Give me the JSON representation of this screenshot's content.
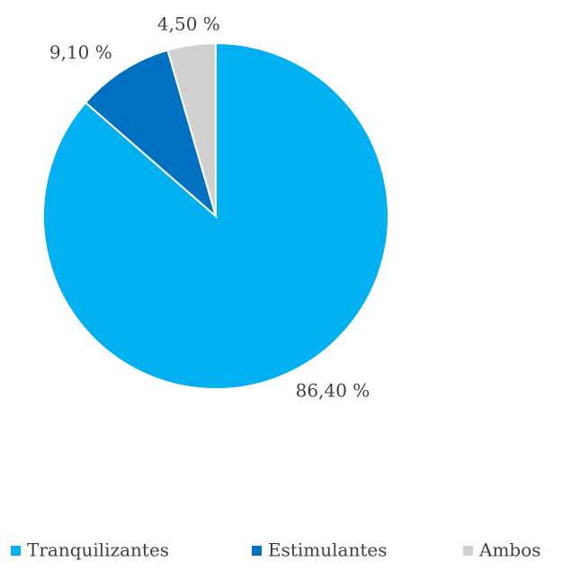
{
  "chart_data": {
    "type": "pie",
    "categories": [
      "Tranquilizantes",
      "Estimulantes",
      "Ambos"
    ],
    "values": [
      86.4,
      9.1,
      4.5
    ],
    "value_labels": [
      "86,40 %",
      "9,10 %",
      "4,50 %"
    ],
    "colors": [
      "#00b0f0",
      "#0070c0",
      "#d0d0d0"
    ],
    "legend": "bottom"
  }
}
